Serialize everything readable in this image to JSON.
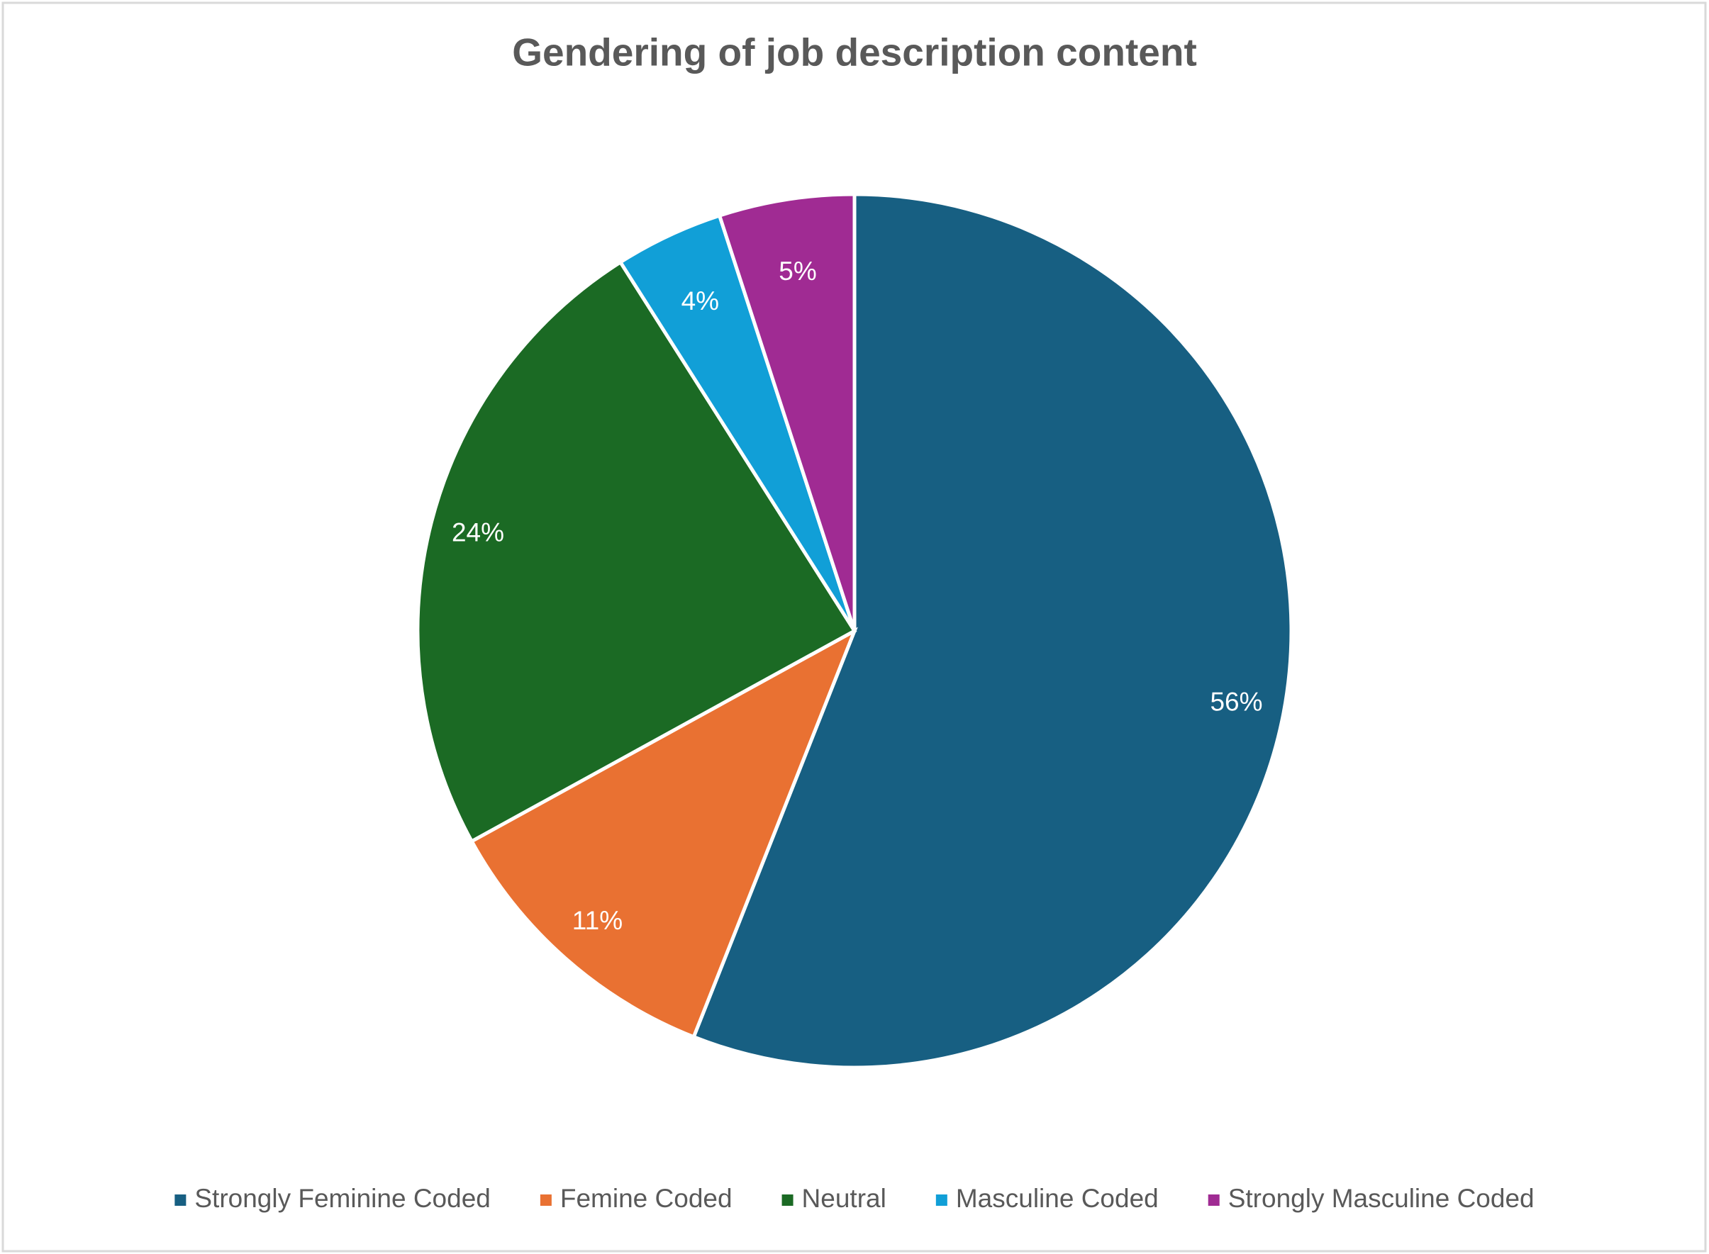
{
  "chart_data": {
    "type": "pie",
    "title": "Gendering of job description content",
    "categories": [
      "Strongly Feminine Coded",
      "Femine Coded",
      "Neutral",
      "Masculine Coded",
      "Strongly Masculine Coded"
    ],
    "values": [
      56,
      11,
      24,
      4,
      5
    ],
    "value_labels": [
      "56%",
      "11%",
      "24%",
      "4%",
      "5%"
    ],
    "colors": [
      "#175f82",
      "#e97132",
      "#1b6a24",
      "#119fd7",
      "#a02b93"
    ],
    "legend": "bottom"
  }
}
